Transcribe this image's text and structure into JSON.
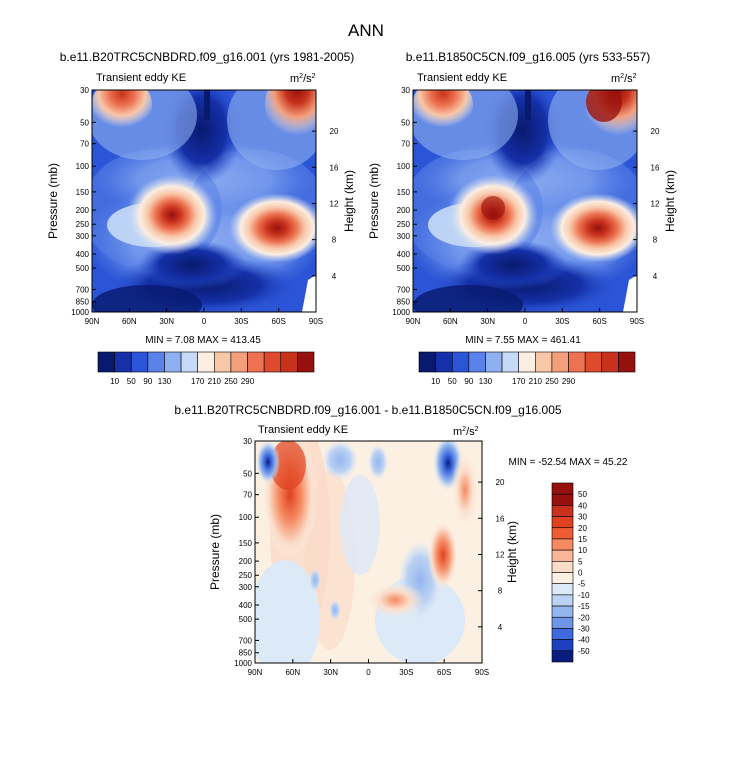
{
  "figure": {
    "title": "ANN"
  },
  "chart_data": [
    {
      "type": "heatmap",
      "title": "b.e11.B20TRC5CNBDRD.f09_g16.001 (yrs 1981-2005)",
      "left_title": "Transient eddy KE",
      "units": {
        "base": "m",
        "sup1": "2",
        "sep": "/s",
        "sup2": "2"
      },
      "ylabel": "Pressure (mb)",
      "y2label": "Height (km)",
      "xticks": [
        "90N",
        "60N",
        "30N",
        "0",
        "30S",
        "60S",
        "90S"
      ],
      "yticks": [
        "30",
        "50",
        "70",
        "100",
        "150",
        "200",
        "250",
        "300",
        "400",
        "500",
        "700",
        "850",
        "1000"
      ],
      "y2ticks": [
        "20",
        "16",
        "12",
        "8",
        "4"
      ],
      "stats_text": "MIN =  7.08  MAX = 413.45",
      "min": 7.08,
      "max": 413.45,
      "colorbar_labels": [
        "10",
        "50",
        "90",
        "130",
        "170",
        "210",
        "250",
        "290"
      ]
    },
    {
      "type": "heatmap",
      "title": "b.e11.B1850C5CN.f09_g16.005 (yrs 533-557)",
      "left_title": "Transient eddy KE",
      "units": {
        "base": "m",
        "sup1": "2",
        "sep": "/s",
        "sup2": "2"
      },
      "ylabel": "Pressure (mb)",
      "y2label": "Height (km)",
      "xticks": [
        "90N",
        "60N",
        "30N",
        "0",
        "30S",
        "60S",
        "90S"
      ],
      "yticks": [
        "30",
        "50",
        "70",
        "100",
        "150",
        "200",
        "250",
        "300",
        "400",
        "500",
        "700",
        "850",
        "1000"
      ],
      "y2ticks": [
        "20",
        "16",
        "12",
        "8",
        "4"
      ],
      "stats_text": "MIN =  7.55  MAX = 461.41",
      "min": 7.55,
      "max": 461.41,
      "colorbar_labels": [
        "10",
        "50",
        "90",
        "130",
        "170",
        "210",
        "250",
        "290"
      ]
    },
    {
      "type": "heatmap",
      "title": "b.e11.B20TRC5CNBDRD.f09_g16.001 - b.e11.B1850C5CN.f09_g16.005",
      "left_title": "Transient eddy KE",
      "units": {
        "base": "m",
        "sup1": "2",
        "sep": "/s",
        "sup2": "2"
      },
      "ylabel": "Pressure (mb)",
      "y2label": "Height (km)",
      "xticks": [
        "90N",
        "60N",
        "30N",
        "0",
        "30S",
        "60S",
        "90S"
      ],
      "yticks": [
        "30",
        "50",
        "70",
        "100",
        "150",
        "200",
        "250",
        "300",
        "400",
        "500",
        "700",
        "850",
        "1000"
      ],
      "y2ticks": [
        "20",
        "16",
        "12",
        "8",
        "4"
      ],
      "stats_text": "MIN = -52.54  MAX = 45.22",
      "min": -52.54,
      "max": 45.22,
      "colorbar_labels": [
        "50",
        "40",
        "30",
        "20",
        "15",
        "10",
        "5",
        "0",
        "-5",
        "-10",
        "-15",
        "-20",
        "-30",
        "-40",
        "-50"
      ]
    }
  ],
  "colors": {
    "seq": [
      "#08196e",
      "#1530a8",
      "#2b55d6",
      "#5a82e8",
      "#8fb0f0",
      "#c6daf7",
      "#fbeee3",
      "#f8c7a8",
      "#f39f7c",
      "#ec7251",
      "#e04a2c",
      "#c8321c",
      "#96110e"
    ],
    "diff": [
      "#96110e",
      "#c8321c",
      "#e0411f",
      "#ef5c34",
      "#f58a62",
      "#f8b597",
      "#fbdcc9",
      "#fcf0e3",
      "#dce9f7",
      "#bcd2f4",
      "#94b6ee",
      "#6e95e6",
      "#3f6ade",
      "#1e3fbe",
      "#0a1d7e"
    ]
  }
}
